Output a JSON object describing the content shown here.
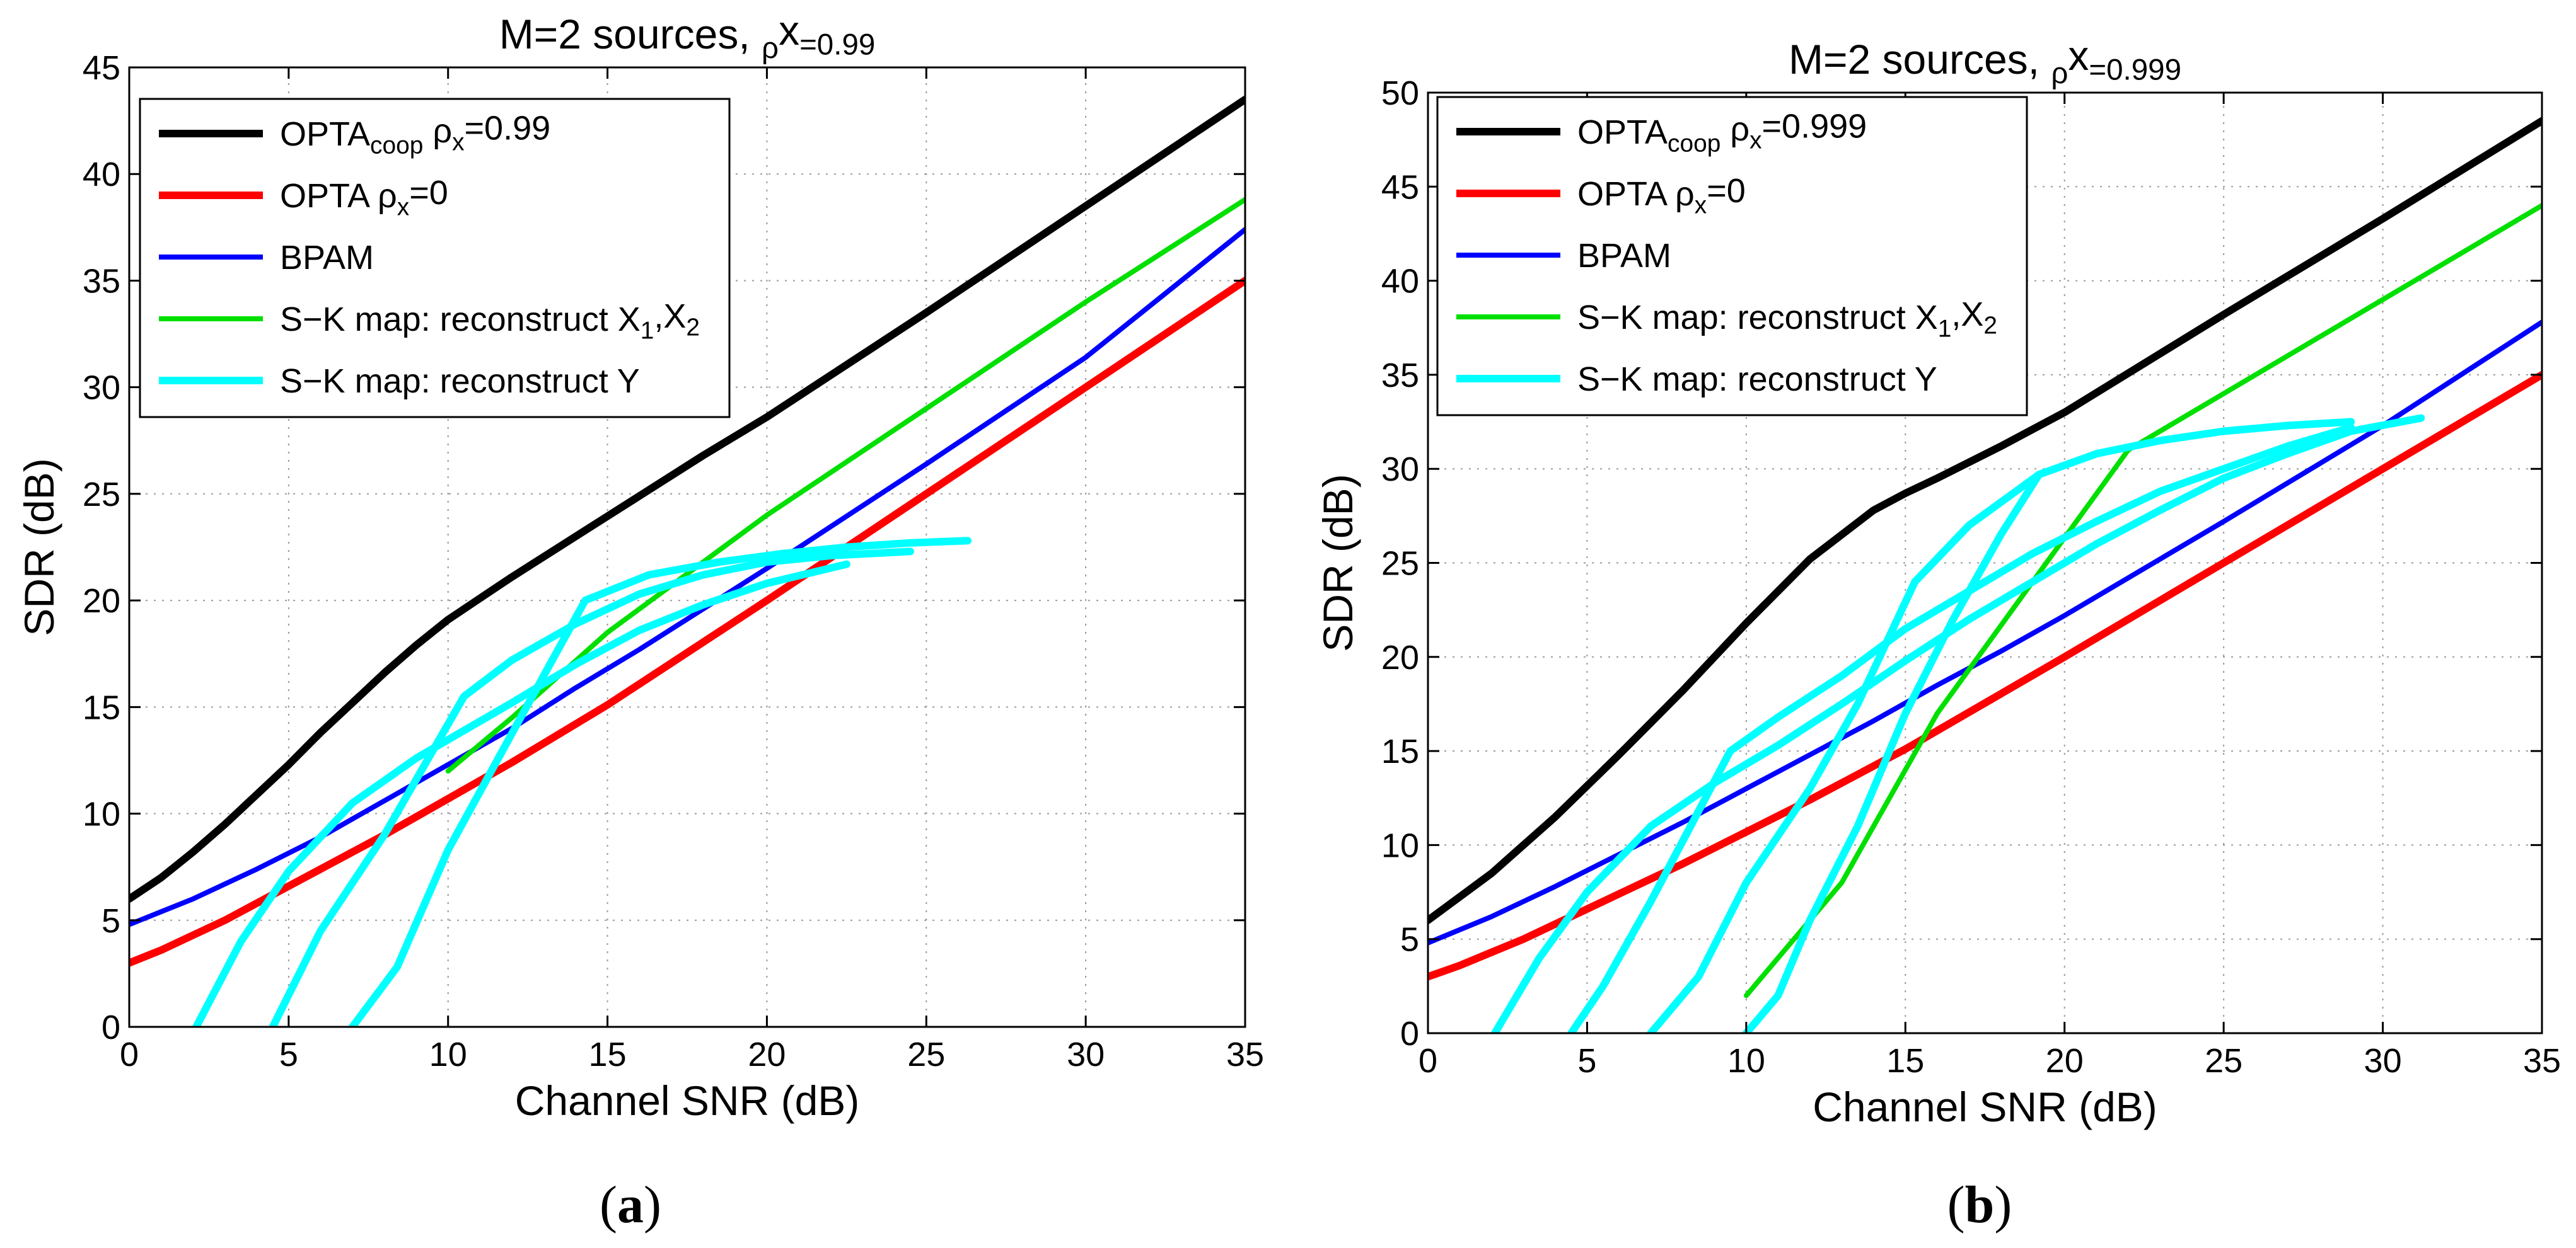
{
  "chart_data": [
    {
      "id": "a",
      "type": "line",
      "panel_label": "a",
      "title": "M=2 sources, ρ_x=0.99",
      "title_parts": [
        "M=2 sources, ",
        "ρ",
        "x",
        "=0.99"
      ],
      "xlabel": "Channel SNR (dB)",
      "ylabel": "SDR (dB)",
      "xlim": [
        0,
        35
      ],
      "ylim": [
        0,
        45
      ],
      "xticks": [
        0,
        5,
        10,
        15,
        20,
        25,
        30,
        35
      ],
      "yticks": [
        0,
        5,
        10,
        15,
        20,
        25,
        30,
        35,
        40,
        45
      ],
      "grid": true,
      "legend_position": "top-left",
      "legend": [
        {
          "series": 0,
          "parts": [
            "OPTA",
            "coop",
            " ρ",
            "x",
            "=0.99"
          ]
        },
        {
          "series": 1,
          "parts": [
            "OPTA ρ",
            "x",
            "=0"
          ]
        },
        {
          "series": 2,
          "parts": [
            "BPAM"
          ]
        },
        {
          "series": 3,
          "parts": [
            "S−K map: reconstruct X",
            "1",
            ",X",
            "2"
          ]
        },
        {
          "series": 4,
          "parts": [
            "S−K map: reconstruct Y"
          ]
        }
      ],
      "series": [
        {
          "name": "OPTA_coop ρx=0.99",
          "color": "#000000",
          "width": "thick",
          "x": [
            0,
            1,
            2,
            3,
            4,
            5,
            6,
            7,
            8,
            9,
            10,
            11,
            12,
            14,
            16,
            18,
            20,
            25,
            30,
            35
          ],
          "y": [
            6,
            7,
            8.2,
            9.5,
            10.9,
            12.3,
            13.8,
            15.2,
            16.6,
            17.9,
            19.1,
            20.1,
            21.1,
            23,
            24.9,
            26.8,
            28.6,
            33.5,
            38.5,
            43.5
          ]
        },
        {
          "name": "OPTA ρx=0",
          "color": "#ff0000",
          "width": "thick",
          "x": [
            0,
            1,
            2,
            3,
            4,
            5,
            6,
            8,
            10,
            12,
            15,
            20,
            25,
            30,
            35
          ],
          "y": [
            3,
            3.6,
            4.3,
            5.0,
            5.8,
            6.6,
            7.4,
            9.0,
            10.7,
            12.4,
            15.1,
            20.0,
            25.0,
            30.0,
            35.0
          ]
        },
        {
          "name": "BPAM",
          "color": "#0000ff",
          "width": "medium",
          "x": [
            0,
            2,
            4,
            6,
            8,
            10,
            12,
            14,
            16,
            18,
            20,
            25,
            30,
            35
          ],
          "y": [
            4.8,
            6.0,
            7.4,
            8.9,
            10.6,
            12.3,
            14.0,
            15.9,
            17.7,
            19.6,
            21.5,
            26.4,
            31.4,
            37.4
          ]
        },
        {
          "name": "S-K map: reconstruct X1,X2",
          "color": "#00e000",
          "width": "medium",
          "x": [
            10,
            12,
            15,
            20,
            25,
            30,
            35
          ],
          "y": [
            12,
            14.5,
            18.5,
            24,
            29,
            34,
            38.8
          ]
        },
        {
          "name": "S-K map: reconstruct Y",
          "color": "#00ffff",
          "width": "thick",
          "curves": [
            {
              "x": [
                2.1,
                3.5,
                5,
                7,
                9,
                10.5,
                12,
                14,
                16,
                18,
                20,
                22.5
              ],
              "y": [
                0,
                4,
                7.3,
                10.5,
                12.6,
                13.9,
                15.2,
                17,
                18.6,
                19.8,
                20.8,
                21.7
              ]
            },
            {
              "x": [
                4.5,
                6,
                8,
                10.5,
                12,
                14,
                16,
                18,
                20,
                22,
                24.5
              ],
              "y": [
                0,
                4.5,
                9,
                15.5,
                17.2,
                18.9,
                20.3,
                21.2,
                21.8,
                22.1,
                22.3
              ]
            },
            {
              "x": [
                7,
                8.4,
                10,
                12.2,
                14.3,
                16.3,
                18.5,
                20.5,
                22.5,
                24.5,
                26.3
              ],
              "y": [
                0,
                2.8,
                8.3,
                14.3,
                20,
                21.2,
                21.8,
                22.2,
                22.5,
                22.7,
                22.8
              ]
            }
          ]
        }
      ]
    },
    {
      "id": "b",
      "type": "line",
      "panel_label": "b",
      "title": "M=2 sources, ρ_x=0.999",
      "title_parts": [
        "M=2 sources, ",
        "ρ",
        "x",
        "=0.999"
      ],
      "xlabel": "Channel SNR (dB)",
      "ylabel": "SDR (dB)",
      "xlim": [
        0,
        35
      ],
      "ylim": [
        0,
        50
      ],
      "xticks": [
        0,
        5,
        10,
        15,
        20,
        25,
        30,
        35
      ],
      "yticks": [
        0,
        5,
        10,
        15,
        20,
        25,
        30,
        35,
        40,
        45,
        50
      ],
      "grid": true,
      "legend_position": "top-left",
      "legend": [
        {
          "series": 0,
          "parts": [
            "OPTA",
            "coop",
            " ρ",
            "x",
            "=0.999"
          ]
        },
        {
          "series": 1,
          "parts": [
            "OPTA ρ",
            "x",
            "=0"
          ]
        },
        {
          "series": 2,
          "parts": [
            "BPAM"
          ]
        },
        {
          "series": 3,
          "parts": [
            "S−K map: reconstruct X",
            "1",
            ",X",
            "2"
          ]
        },
        {
          "series": 4,
          "parts": [
            "S−K map: reconstruct Y"
          ]
        }
      ],
      "series": [
        {
          "name": "OPTA_coop ρx=0.999",
          "color": "#000000",
          "width": "thick",
          "x": [
            0,
            2,
            4,
            6,
            8,
            10,
            12,
            14,
            15,
            16,
            18,
            20,
            25,
            30,
            35
          ],
          "y": [
            6,
            8.5,
            11.5,
            14.8,
            18.2,
            21.8,
            25.2,
            27.8,
            28.7,
            29.5,
            31.2,
            33,
            38.2,
            43.3,
            48.5
          ]
        },
        {
          "name": "OPTA ρx=0",
          "color": "#ff0000",
          "width": "thick",
          "x": [
            0,
            1,
            2,
            3,
            4,
            5,
            6,
            8,
            10,
            12,
            15,
            20,
            25,
            30,
            35
          ],
          "y": [
            3,
            3.6,
            4.3,
            5.0,
            5.8,
            6.6,
            7.4,
            9.0,
            10.7,
            12.4,
            15.1,
            20.0,
            25.0,
            30.0,
            35.0
          ]
        },
        {
          "name": "BPAM",
          "color": "#0000ff",
          "width": "medium",
          "x": [
            0,
            2,
            4,
            6,
            8,
            10,
            12,
            14,
            16,
            18,
            20,
            25,
            30,
            35
          ],
          "y": [
            4.8,
            6.2,
            7.8,
            9.5,
            11.2,
            13.0,
            14.8,
            16.6,
            18.5,
            20.3,
            22.2,
            27.2,
            32.3,
            37.8
          ]
        },
        {
          "name": "S-K map: reconstruct X1,X2",
          "color": "#00e000",
          "width": "medium",
          "x": [
            10,
            13,
            16,
            19,
            22,
            25,
            30,
            35
          ],
          "y": [
            2,
            8,
            17,
            24,
            31,
            34,
            39,
            44
          ]
        },
        {
          "name": "S-K map: reconstruct Y",
          "color": "#00ffff",
          "width": "thick",
          "curves": [
            {
              "x": [
                2.1,
                3.5,
                5,
                7,
                9,
                11,
                13,
                15,
                17,
                19,
                21,
                23,
                25,
                27,
                29,
                31.2
              ],
              "y": [
                0,
                4,
                7.5,
                11,
                13.3,
                15.3,
                17.5,
                19.8,
                22,
                24,
                26,
                27.8,
                29.5,
                30.8,
                32,
                32.7
              ]
            },
            {
              "x": [
                4.5,
                5.5,
                7,
                9.5,
                11,
                13,
                15,
                17,
                19,
                21,
                23,
                25,
                27,
                29
              ],
              "y": [
                0,
                2.5,
                7,
                15,
                16.8,
                19,
                21.5,
                23.5,
                25.5,
                27.2,
                28.8,
                30,
                31.2,
                32.2
              ]
            },
            {
              "x": [
                7,
                8.5,
                10,
                12,
                13.5,
                15.3,
                17,
                19.2,
                21,
                23,
                25,
                27,
                29
              ],
              "y": [
                0,
                3,
                8,
                13,
                17.5,
                24,
                27,
                29.7,
                30.8,
                31.5,
                32,
                32.3,
                32.5
              ]
            },
            {
              "x": [
                10,
                11,
                12,
                13.5,
                15,
                16.5,
                18,
                19.2
              ],
              "y": [
                0,
                2,
                6,
                11,
                17,
                22,
                26.5,
                29.7
              ]
            }
          ]
        }
      ]
    }
  ]
}
